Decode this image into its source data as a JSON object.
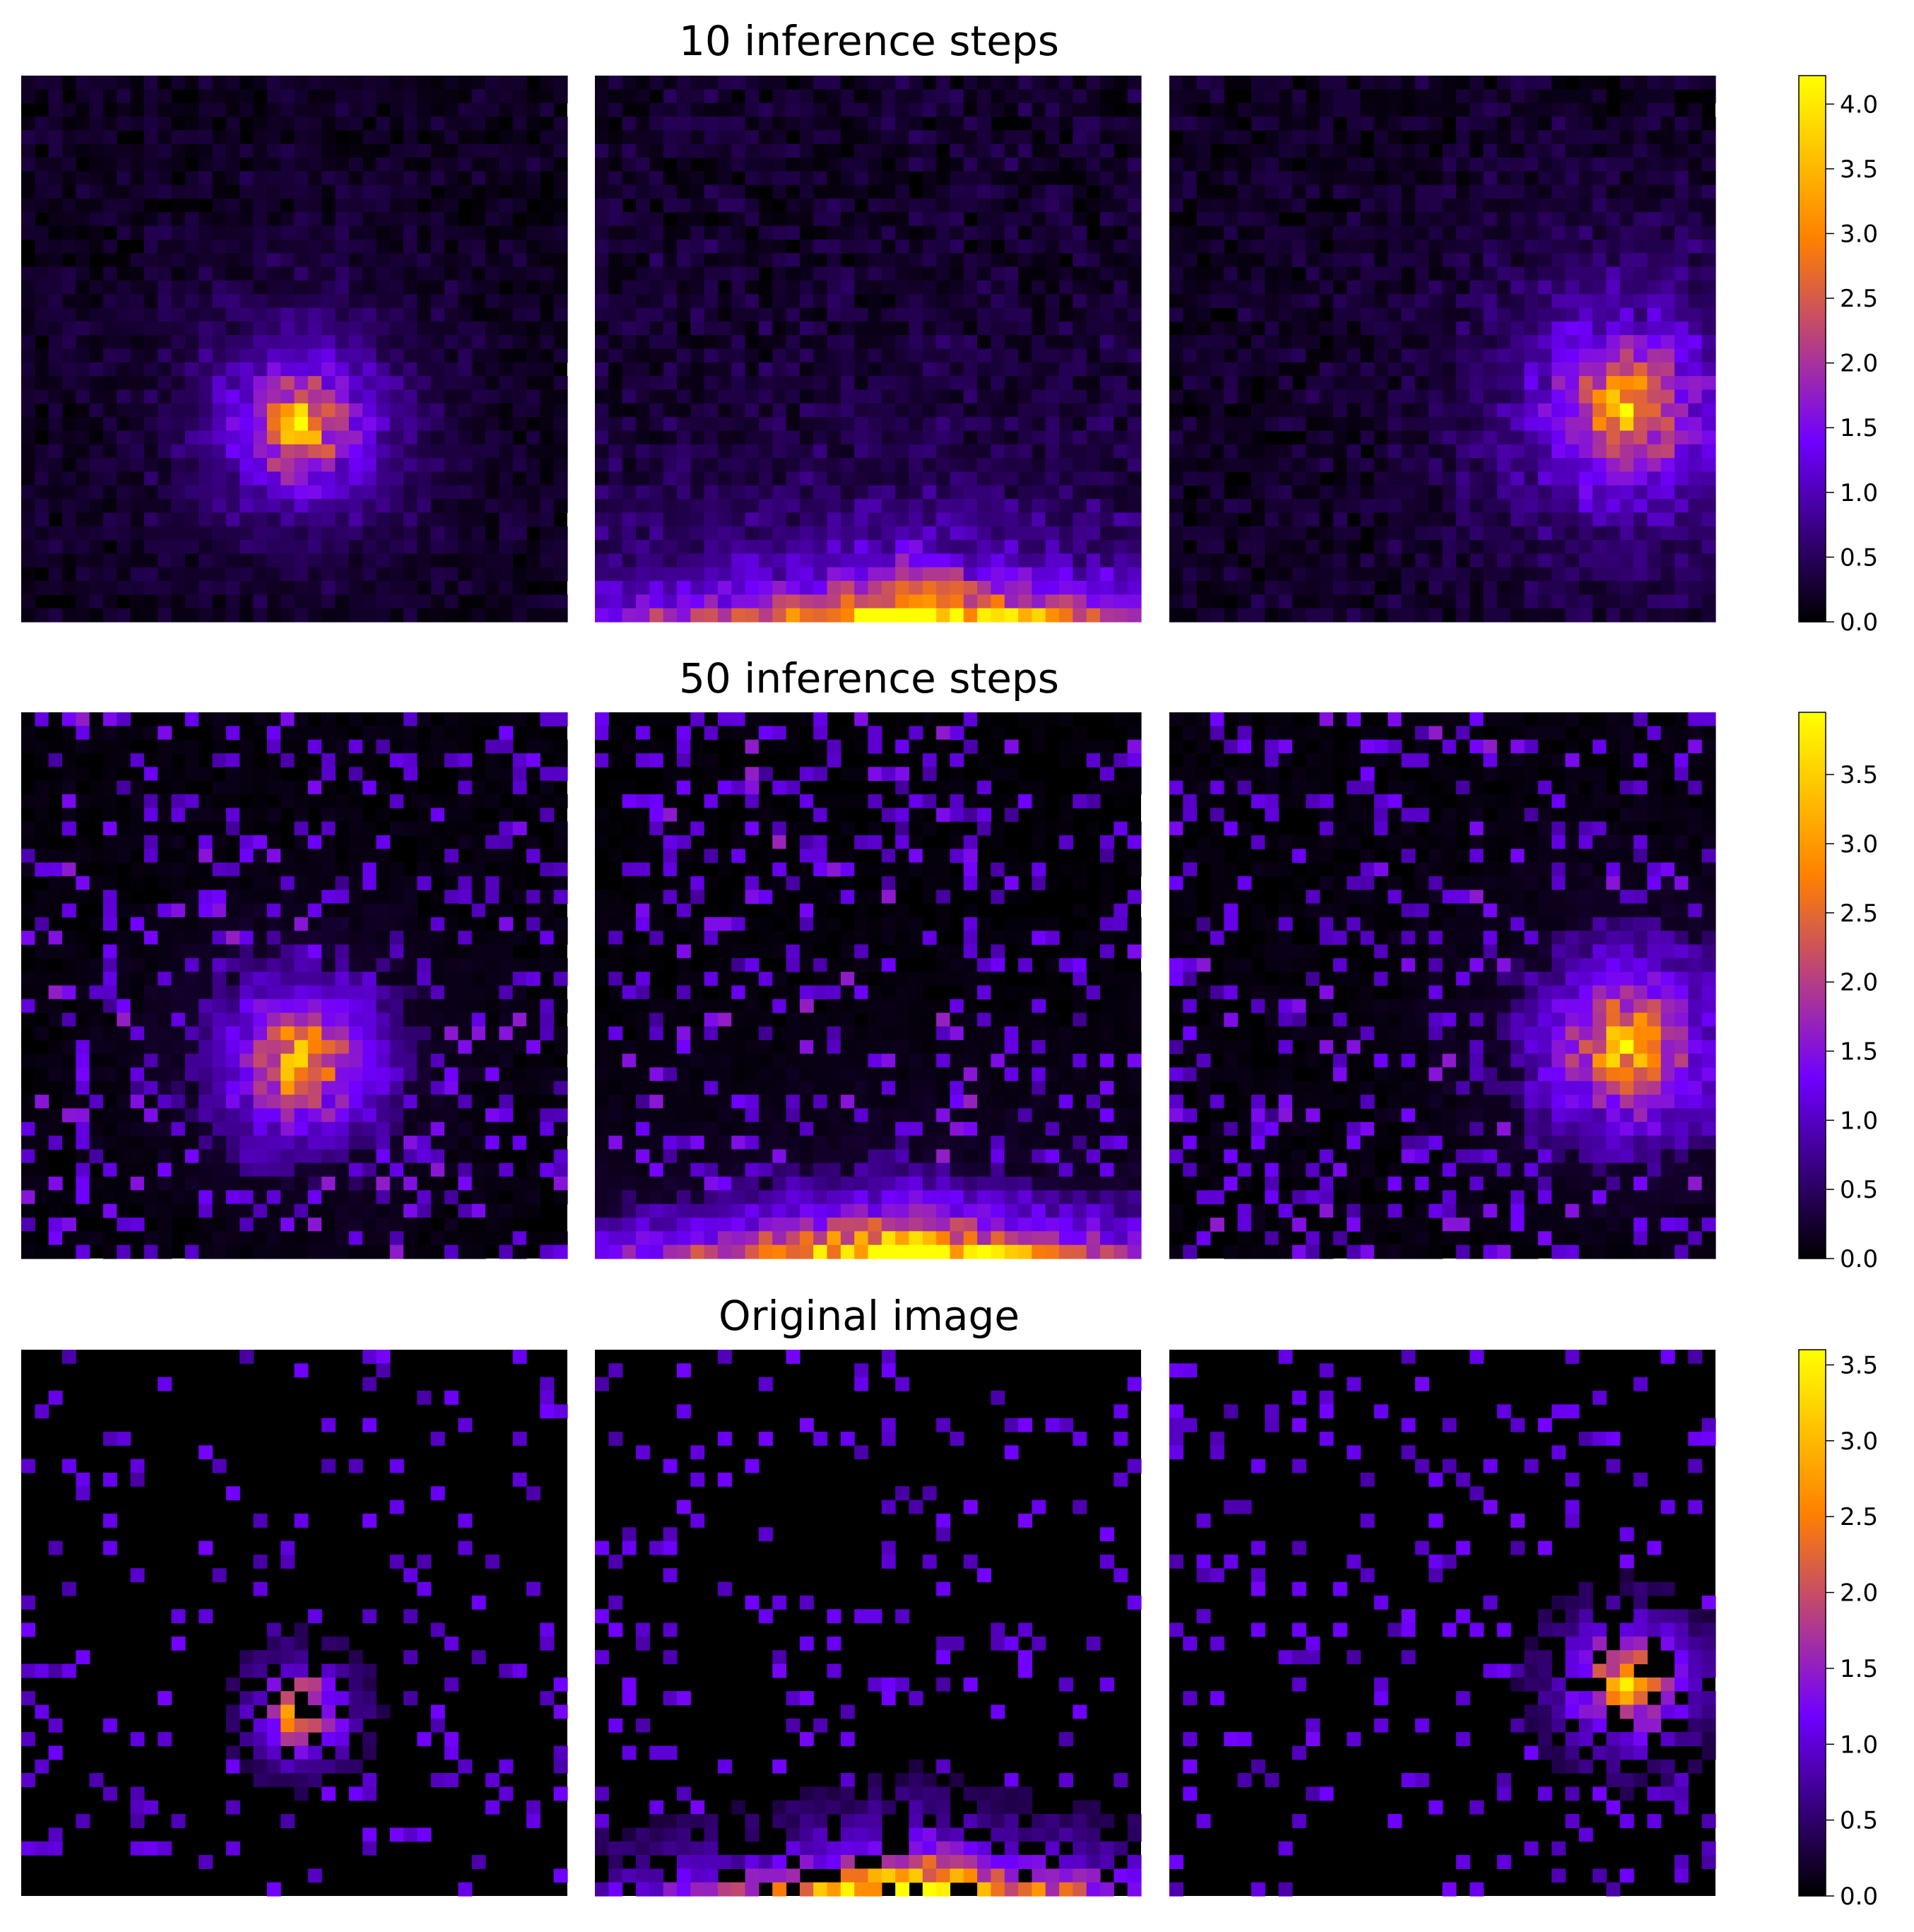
{
  "figure": {
    "colormap": "gnuplot",
    "colormap_stops": [
      "#000000",
      "#7000ff",
      "#ff8000",
      "#ffff00"
    ]
  },
  "chart_data": [
    {
      "type": "heatmap",
      "title": "10 inference steps",
      "grid_size": 40,
      "colorbar": {
        "vmin": 0.0,
        "vmax": 4.22,
        "ticks": [
          "0.0",
          "0.5",
          "1.0",
          "1.5",
          "2.0",
          "2.5",
          "3.0",
          "3.5",
          "4.0"
        ]
      },
      "panels": [
        {
          "pattern": "peak",
          "center": [
            20,
            25
          ],
          "peak": 4.1,
          "spread": 4.0,
          "background": 0.35,
          "sparse": false
        },
        {
          "pattern": "bottom-band",
          "center": [
            23,
            39
          ],
          "peak": 4.0,
          "spread": 6.0,
          "background": 0.45,
          "sparse": false
        },
        {
          "pattern": "peak",
          "center": [
            33,
            24
          ],
          "peak": 4.1,
          "spread": 5.0,
          "background": 0.4,
          "sparse": false
        }
      ]
    },
    {
      "type": "heatmap",
      "title": "50 inference steps",
      "grid_size": 40,
      "colorbar": {
        "vmin": 0.0,
        "vmax": 3.95,
        "ticks": [
          "0.0",
          "0.5",
          "1.0",
          "1.5",
          "2.0",
          "2.5",
          "3.0",
          "3.5"
        ]
      },
      "panels": [
        {
          "pattern": "peak",
          "center": [
            20,
            25
          ],
          "peak": 3.8,
          "spread": 4.5,
          "background": 0.3,
          "sparse": true
        },
        {
          "pattern": "bottom-band",
          "center": [
            22,
            39
          ],
          "peak": 3.9,
          "spread": 6.0,
          "background": 0.2,
          "sparse": true
        },
        {
          "pattern": "peak",
          "center": [
            33,
            24
          ],
          "peak": 3.8,
          "spread": 5.0,
          "background": 0.3,
          "sparse": true
        }
      ]
    },
    {
      "type": "heatmap",
      "title": "Original image",
      "grid_size": 40,
      "colorbar": {
        "vmin": 0.0,
        "vmax": 3.6,
        "ticks": [
          "0.0",
          "0.5",
          "1.0",
          "1.5",
          "2.0",
          "2.5",
          "3.0",
          "3.5"
        ]
      },
      "panels": [
        {
          "pattern": "peak",
          "center": [
            20,
            26
          ],
          "peak": 3.5,
          "spread": 3.0,
          "background": 0.0,
          "sparse": true
        },
        {
          "pattern": "bottom-band",
          "center": [
            23,
            39
          ],
          "peak": 3.5,
          "spread": 5.0,
          "background": 0.0,
          "sparse": true
        },
        {
          "pattern": "peak",
          "center": [
            33,
            24
          ],
          "peak": 3.5,
          "spread": 4.0,
          "background": 0.0,
          "sparse": true
        }
      ]
    }
  ]
}
